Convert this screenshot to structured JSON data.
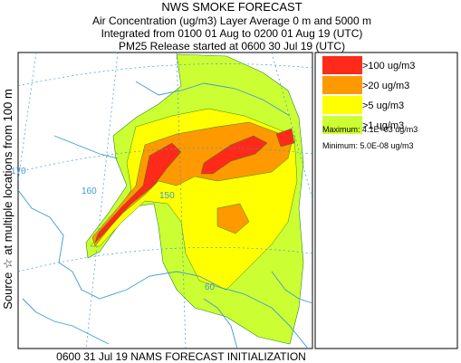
{
  "header": {
    "title": "NWS SMOKE FORECAST",
    "lines": [
      "Air Concentration (ug/m3) Layer Average    0 m and  5000 m",
      "Integrated from 0100 01 Aug to 0200 01 Aug 19 (UTC)",
      "PM25 Release started at 0600 30 Jul 19 (UTC)"
    ]
  },
  "legend": {
    "items": [
      {
        "label": ">100 ug/m3",
        "color": "#ff2a1a"
      },
      {
        "label": ">20 ug/m3",
        "color": "#ff9900"
      },
      {
        "label": ">5 ug/m3",
        "color": "#ffff00"
      },
      {
        "label": ">1 ug/m3",
        "color": "#ccff33"
      }
    ],
    "maximum": "Maximum: 4.1E+03 ug/m3",
    "minimum": "Minimum: 5.0E-08 ug/m3"
  },
  "side_label": "Source ☆ at multiple locations    from  100 m",
  "footer": "0600 31 Jul 19 NAMS FORECAST INITIALIZATION",
  "map_labels": [
    "170",
    "160",
    "150",
    "60"
  ]
}
